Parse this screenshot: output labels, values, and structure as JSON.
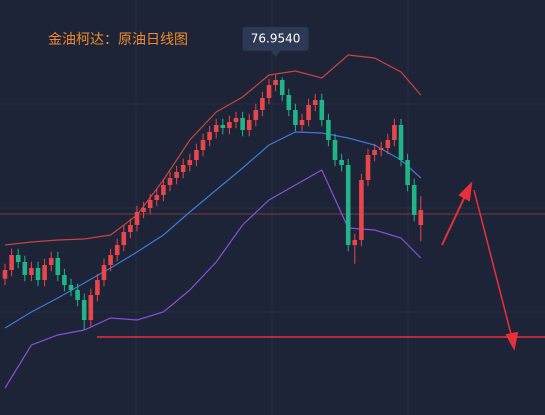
{
  "chart_data": {
    "type": "candlestick",
    "title": "金油柯达：原油日线图",
    "max_label": "76.9540",
    "ylim": [
      63.35,
      79.95
    ],
    "up_color": "#e8464a",
    "down_color": "#22b488",
    "open": [
      68.8,
      69.15,
      69.75,
      69.47,
      68.95,
      69.23,
      68.75,
      69.35,
      69.63,
      68.95,
      68.55,
      68.35,
      67.95,
      67.15,
      68.15,
      68.75,
      69.35,
      69.75,
      70.15,
      70.67,
      70.95,
      71.47,
      71.63,
      71.95,
      72.15,
      72.55,
      72.83,
      73.07,
      73.35,
      73.55,
      73.95,
      74.35,
      74.67,
      74.95,
      74.83,
      75.07,
      75.23,
      74.75,
      75.15,
      75.55,
      76.03,
      76.55,
      76.75,
      76.15,
      75.55,
      74.95,
      75.15,
      75.75,
      75.95,
      75.15,
      74.35,
      73.55,
      73.35,
      70.15,
      70.35,
      72.75,
      73.75,
      73.95,
      74.03,
      74.35,
      74.95,
      73.55,
      72.55,
      70.95
    ],
    "close": [
      69.15,
      69.75,
      69.47,
      68.95,
      69.23,
      68.75,
      69.35,
      69.63,
      68.95,
      68.55,
      68.35,
      67.95,
      67.15,
      68.15,
      68.75,
      69.35,
      69.75,
      70.15,
      70.67,
      70.95,
      71.47,
      71.63,
      71.95,
      72.15,
      72.55,
      72.83,
      73.07,
      73.35,
      73.55,
      73.95,
      74.35,
      74.67,
      74.95,
      74.83,
      75.07,
      75.23,
      74.75,
      75.15,
      75.55,
      76.03,
      76.55,
      76.75,
      76.15,
      75.55,
      74.95,
      75.15,
      75.75,
      75.95,
      75.15,
      74.35,
      73.55,
      73.35,
      70.15,
      70.35,
      72.75,
      73.75,
      73.95,
      74.03,
      74.35,
      74.95,
      73.55,
      72.55,
      71.35,
      71.55
    ],
    "high": [
      69.4,
      70.0,
      70.0,
      69.72,
      69.48,
      69.48,
      69.6,
      69.88,
      69.88,
      69.2,
      68.8,
      68.6,
      68.2,
      68.4,
      69.0,
      69.6,
      70.0,
      70.4,
      70.92,
      71.2,
      71.72,
      71.88,
      72.2,
      72.4,
      72.8,
      73.08,
      73.32,
      73.6,
      73.8,
      74.2,
      74.6,
      74.92,
      75.2,
      75.2,
      75.32,
      75.48,
      75.48,
      75.4,
      75.8,
      76.28,
      76.8,
      76.954,
      76.85,
      76.4,
      75.8,
      75.4,
      76.0,
      76.2,
      76.2,
      75.4,
      74.6,
      73.8,
      73.6,
      70.6,
      73.0,
      74.0,
      74.2,
      74.28,
      74.6,
      75.2,
      75.2,
      73.8,
      72.8,
      72.1
    ],
    "low": [
      68.55,
      68.9,
      69.22,
      68.7,
      68.7,
      68.5,
      68.5,
      69.1,
      68.7,
      68.3,
      68.1,
      67.7,
      66.75,
      66.9,
      67.9,
      68.5,
      69.1,
      69.5,
      69.9,
      70.42,
      70.7,
      71.22,
      71.38,
      71.7,
      71.9,
      72.3,
      72.58,
      72.82,
      73.1,
      73.3,
      73.7,
      74.1,
      74.42,
      74.58,
      74.58,
      74.82,
      74.5,
      74.5,
      74.9,
      75.3,
      75.78,
      76.3,
      75.9,
      75.3,
      74.7,
      74.7,
      74.9,
      75.5,
      74.9,
      74.1,
      73.3,
      73.1,
      69.9,
      69.4,
      70.1,
      72.5,
      73.5,
      73.7,
      73.78,
      74.1,
      73.3,
      72.3,
      71.1,
      70.3
    ],
    "series": [
      {
        "color": "#c9443f",
        "x": [
          0,
          4,
          8,
          12,
          16,
          20,
          24,
          28,
          32,
          36,
          40,
          44,
          48,
          52,
          56,
          60,
          63
        ],
        "values": [
          70.15,
          70.27,
          70.35,
          70.39,
          70.55,
          71.35,
          72.75,
          74.35,
          75.47,
          76.07,
          76.95,
          77.11,
          76.83,
          77.75,
          77.63,
          77.07,
          76.15
        ]
      },
      {
        "color": "#3d7ad8",
        "x": [
          0,
          4,
          8,
          12,
          16,
          20,
          24,
          28,
          32,
          36,
          40,
          44,
          48,
          52,
          56,
          60,
          63
        ],
        "values": [
          66.83,
          67.47,
          68.03,
          68.63,
          69.23,
          69.87,
          70.55,
          71.47,
          72.35,
          73.23,
          74.15,
          74.67,
          74.63,
          74.43,
          74.15,
          73.55,
          72.83
        ]
      },
      {
        "color": "#8a4fd8",
        "x": [
          0,
          4,
          8,
          12,
          16,
          20,
          24,
          28,
          32,
          36,
          40,
          44,
          48,
          52,
          56,
          60,
          63
        ],
        "values": [
          64.43,
          66.15,
          66.55,
          66.75,
          67.23,
          67.15,
          67.47,
          68.35,
          69.47,
          70.95,
          71.95,
          72.55,
          73.15,
          70.83,
          70.75,
          70.43,
          69.63
        ]
      }
    ],
    "reference_lines": [
      {
        "value": 71.39,
        "color": "#7a3a42"
      },
      {
        "value": 66.47,
        "color": "#e8303a"
      }
    ]
  }
}
